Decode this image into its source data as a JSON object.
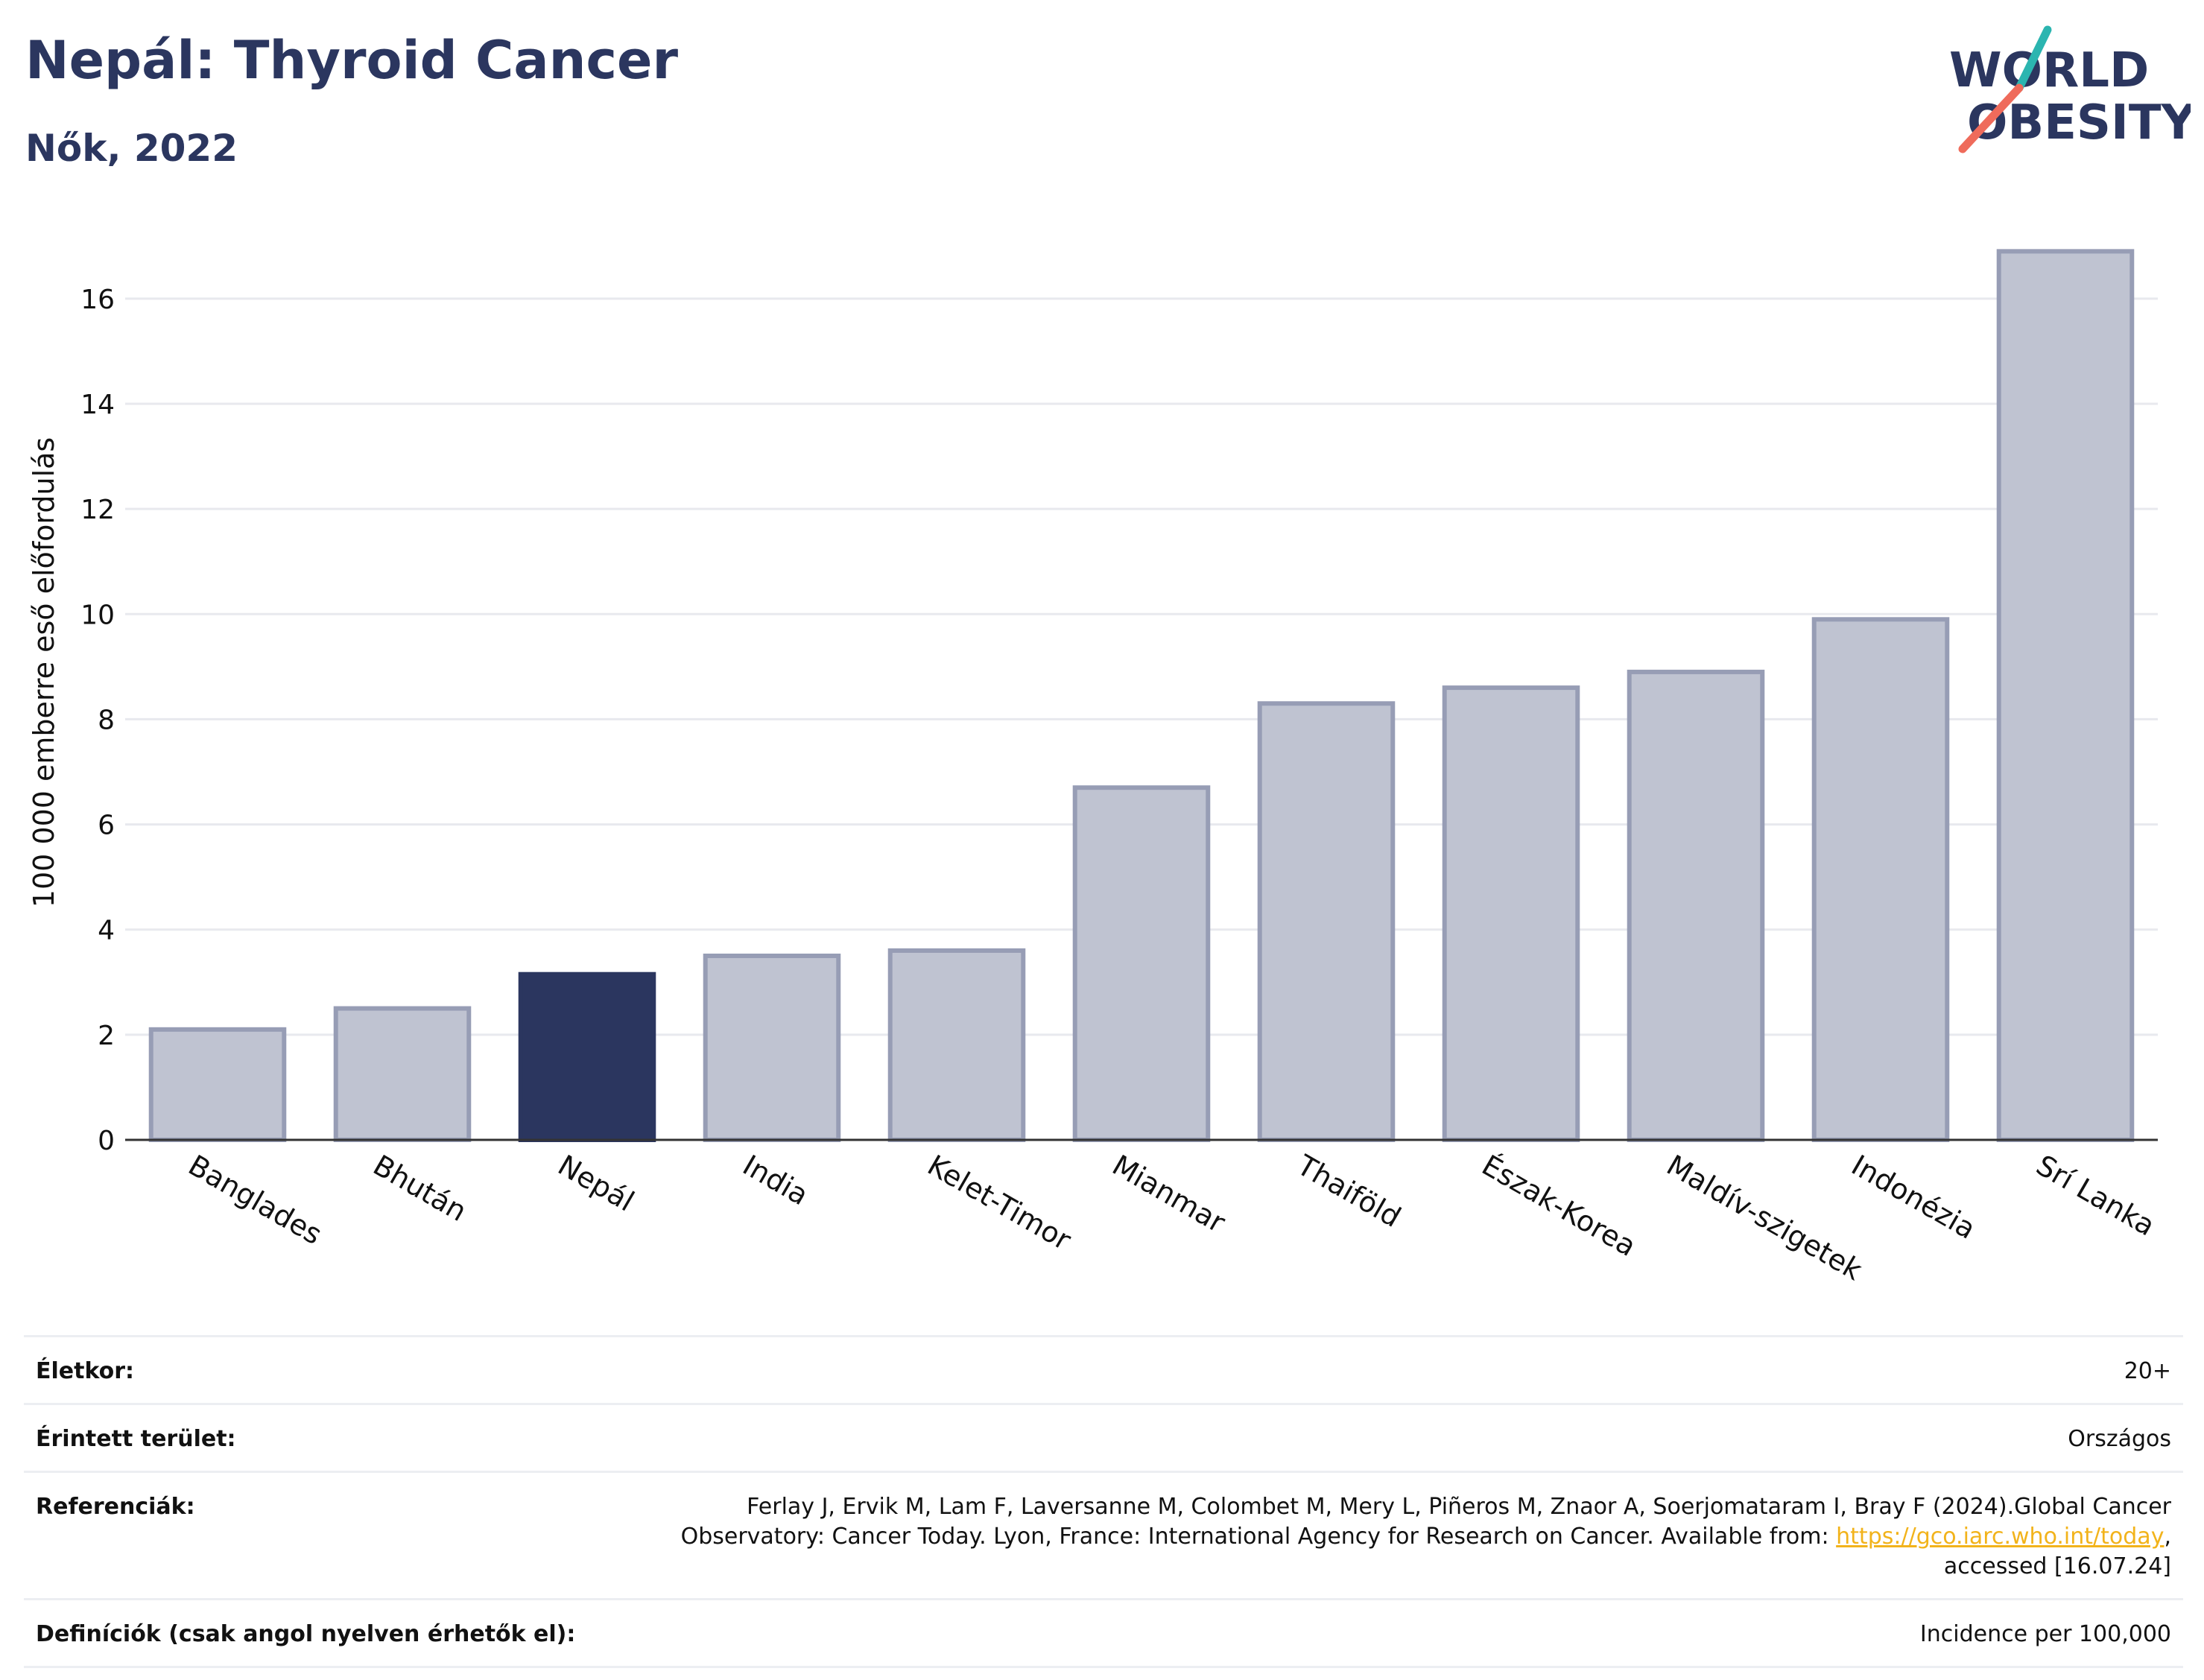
{
  "header": {
    "title": "Nepál: Thyroid Cancer",
    "subtitle": "Nők, 2022"
  },
  "logo": {
    "line1": "WORLD",
    "line2": "OBESITY",
    "slash_color_top": "#2bb5b0",
    "slash_color_bottom": "#ef6b5b",
    "text_color": "#2b365f"
  },
  "chart_data": {
    "type": "bar",
    "ylabel": "100 000 emberre eső előfordulás",
    "xlabel": "",
    "ylim": [
      0,
      17.5
    ],
    "yticks": [
      0,
      2,
      4,
      6,
      8,
      10,
      12,
      14,
      16
    ],
    "grid": true,
    "categories": [
      "Banglades",
      "Bhután",
      "Nepál",
      "India",
      "Kelet-Timor",
      "Mianmar",
      "Thaiföld",
      "Észak-Korea",
      "Maldív-szigetek",
      "Indonézia",
      "Srí Lanka"
    ],
    "values": [
      2.1,
      2.5,
      3.15,
      3.5,
      3.6,
      6.7,
      8.3,
      8.6,
      8.9,
      9.9,
      16.9
    ],
    "highlight": "Nepál",
    "colors": {
      "bar": "#bfc3d1",
      "bar_border": "#979db5",
      "highlight": "#2b365f",
      "grid": "#e8e9ee",
      "axis": "#333333"
    }
  },
  "info": {
    "rows": [
      {
        "label": "Életkor:",
        "value": "20+"
      },
      {
        "label": "Érintett terület:",
        "value": "Országos"
      },
      {
        "label": "Referenciák:",
        "value_before_link": "Ferlay J, Ervik M, Lam F, Laversanne M, Colombet M, Mery L, Piñeros M, Znaor A, Soerjomataram I, Bray F (2024).Global Cancer Observatory: Cancer Today. Lyon, France: International Agency for Research on Cancer. Available from: ",
        "link": "https://gco.iarc.who.int/today",
        "value_after_link": ", accessed [16.07.24]"
      },
      {
        "label": "Definíciók (csak angol nyelven érhetők el):",
        "value": "Incidence per 100,000"
      }
    ]
  }
}
